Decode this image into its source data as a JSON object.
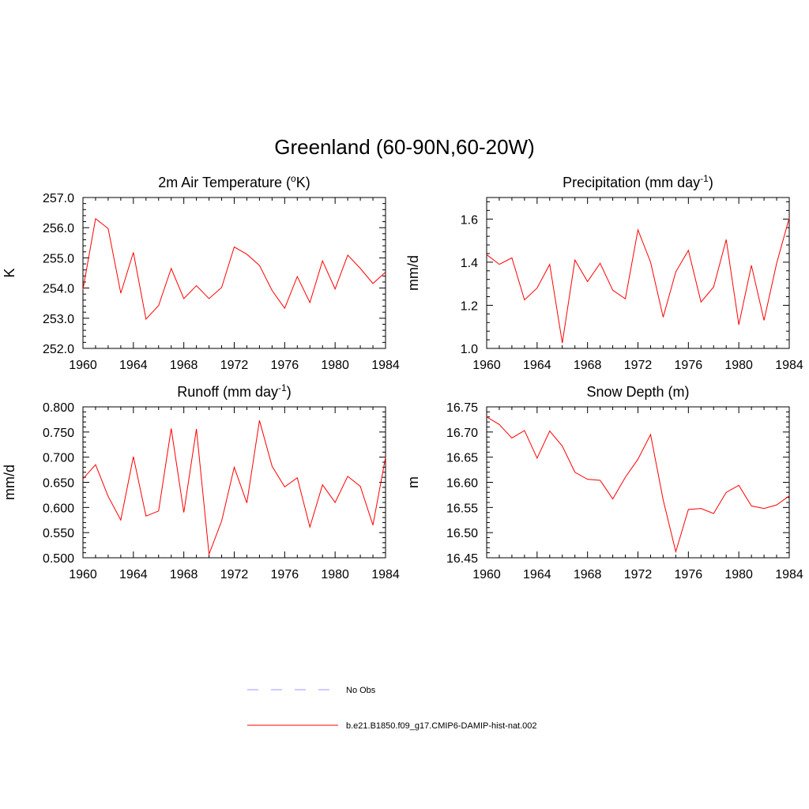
{
  "title": "Greenland (60-90N,60-20W)",
  "legend": [
    {
      "label": "No Obs",
      "color": "#9999ff",
      "dashed": true
    },
    {
      "label": "b.e21.B1850.f09_g17.CMIP6-DAMIP-hist-nat.002",
      "color": "#ff0000",
      "dashed": false
    }
  ],
  "chart_data": [
    {
      "type": "line",
      "title": "2m Air Temperature (°K)",
      "title_parts": [
        "2m Air Temperature (",
        "o",
        "K)"
      ],
      "ylabel": "K",
      "xlim": [
        1960,
        1984
      ],
      "ylim": [
        252.0,
        257.0
      ],
      "xticks": [
        1960,
        1964,
        1968,
        1972,
        1976,
        1980,
        1984
      ],
      "xtick_labels": [
        "1960",
        "1964",
        "1968",
        "1972",
        "1976",
        "1980",
        "1984"
      ],
      "yticks": [
        252.0,
        253.0,
        254.0,
        255.0,
        256.0,
        257.0
      ],
      "ytick_labels": [
        "252.0",
        "253.0",
        "254.0",
        "255.0",
        "256.0",
        "257.0"
      ],
      "series": [
        {
          "color": "#ff0000",
          "x": [
            1960,
            1961,
            1962,
            1963,
            1964,
            1965,
            1966,
            1967,
            1968,
            1969,
            1970,
            1971,
            1972,
            1973,
            1974,
            1975,
            1976,
            1977,
            1978,
            1979,
            1980,
            1981,
            1982,
            1983,
            1984
          ],
          "y": [
            253.95,
            256.3,
            255.97,
            253.83,
            255.18,
            252.97,
            253.42,
            254.65,
            253.65,
            254.08,
            253.65,
            254.02,
            255.36,
            255.12,
            254.75,
            253.92,
            253.33,
            254.38,
            253.52,
            254.9,
            253.97,
            255.09,
            254.65,
            254.15,
            254.53
          ]
        }
      ]
    },
    {
      "type": "line",
      "title": "Precipitation (mm day⁻¹)",
      "title_parts": [
        "Precipitation (mm day",
        "-1",
        ")"
      ],
      "ylabel": "mm/d",
      "xlim": [
        1960,
        1984
      ],
      "ylim": [
        1.0,
        1.7
      ],
      "xticks": [
        1960,
        1964,
        1968,
        1972,
        1976,
        1980,
        1984
      ],
      "xtick_labels": [
        "1960",
        "1964",
        "1968",
        "1972",
        "1976",
        "1980",
        "1984"
      ],
      "yticks": [
        1.0,
        1.2,
        1.4,
        1.6
      ],
      "ytick_labels": [
        "1.0",
        "1.2",
        "1.4",
        "1.6"
      ],
      "series": [
        {
          "color": "#ff0000",
          "x": [
            1960,
            1961,
            1962,
            1963,
            1964,
            1965,
            1966,
            1967,
            1968,
            1969,
            1970,
            1971,
            1972,
            1973,
            1974,
            1975,
            1976,
            1977,
            1978,
            1979,
            1980,
            1981,
            1982,
            1983,
            1984
          ],
          "y": [
            1.435,
            1.39,
            1.42,
            1.225,
            1.28,
            1.39,
            1.025,
            1.41,
            1.31,
            1.395,
            1.27,
            1.23,
            1.55,
            1.4,
            1.145,
            1.355,
            1.455,
            1.215,
            1.285,
            1.505,
            1.11,
            1.385,
            1.13,
            1.395,
            1.605
          ]
        }
      ]
    },
    {
      "type": "line",
      "title": "Runoff (mm day⁻¹)",
      "title_parts": [
        "Runoff (mm day",
        "-1",
        ")"
      ],
      "ylabel": "mm/d",
      "xlim": [
        1960,
        1984
      ],
      "ylim": [
        0.5,
        0.8
      ],
      "xticks": [
        1960,
        1964,
        1968,
        1972,
        1976,
        1980,
        1984
      ],
      "xtick_labels": [
        "1960",
        "1964",
        "1968",
        "1972",
        "1976",
        "1980",
        "1984"
      ],
      "yticks": [
        0.5,
        0.55,
        0.6,
        0.65,
        0.7,
        0.75,
        0.8
      ],
      "ytick_labels": [
        "0.500",
        "0.550",
        "0.600",
        "0.650",
        "0.700",
        "0.750",
        "0.800"
      ],
      "series": [
        {
          "color": "#ff0000",
          "x": [
            1960,
            1961,
            1962,
            1963,
            1964,
            1965,
            1966,
            1967,
            1968,
            1969,
            1970,
            1971,
            1972,
            1973,
            1974,
            1975,
            1976,
            1977,
            1978,
            1979,
            1980,
            1981,
            1982,
            1983,
            1984
          ],
          "y": [
            0.657,
            0.685,
            0.622,
            0.575,
            0.701,
            0.583,
            0.593,
            0.757,
            0.59,
            0.756,
            0.507,
            0.573,
            0.68,
            0.609,
            0.773,
            0.682,
            0.641,
            0.659,
            0.561,
            0.645,
            0.61,
            0.662,
            0.642,
            0.565,
            0.7
          ]
        }
      ]
    },
    {
      "type": "line",
      "title": "Snow Depth (m)",
      "title_parts": [
        "Snow Depth (m)",
        "",
        ""
      ],
      "ylabel": "m",
      "xlim": [
        1960,
        1984
      ],
      "ylim": [
        16.45,
        16.75
      ],
      "xticks": [
        1960,
        1964,
        1968,
        1972,
        1976,
        1980,
        1984
      ],
      "xtick_labels": [
        "1960",
        "1964",
        "1968",
        "1972",
        "1976",
        "1980",
        "1984"
      ],
      "yticks": [
        16.45,
        16.5,
        16.55,
        16.6,
        16.65,
        16.7,
        16.75
      ],
      "ytick_labels": [
        "16.45",
        "16.50",
        "16.55",
        "16.60",
        "16.65",
        "16.70",
        "16.75"
      ],
      "series": [
        {
          "color": "#ff0000",
          "x": [
            1960,
            1961,
            1962,
            1963,
            1964,
            1965,
            1966,
            1967,
            1968,
            1969,
            1970,
            1971,
            1972,
            1973,
            1974,
            1975,
            1976,
            1977,
            1978,
            1979,
            1980,
            1981,
            1982,
            1983,
            1984
          ],
          "y": [
            16.73,
            16.715,
            16.688,
            16.703,
            16.648,
            16.702,
            16.672,
            16.62,
            16.606,
            16.604,
            16.567,
            16.61,
            16.646,
            16.695,
            16.565,
            16.462,
            16.546,
            16.548,
            16.538,
            16.58,
            16.594,
            16.553,
            16.548,
            16.555,
            16.573
          ]
        }
      ]
    }
  ]
}
